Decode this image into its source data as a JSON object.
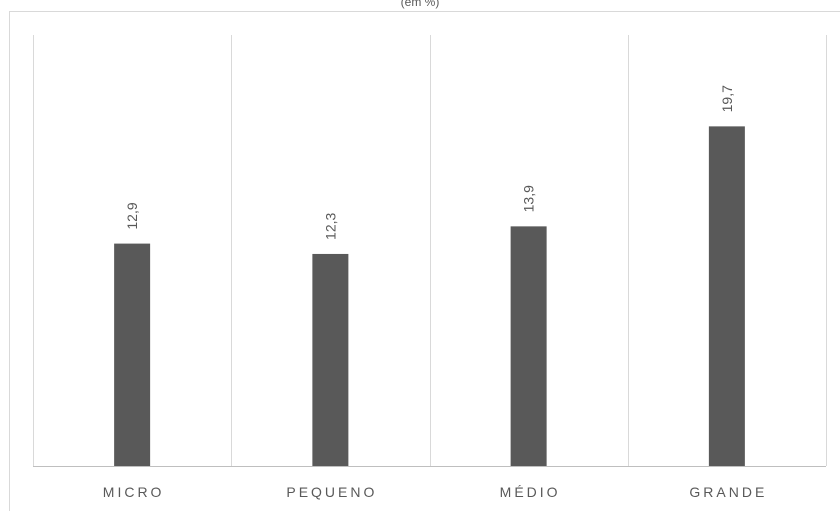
{
  "chart_data": {
    "type": "bar",
    "title": "(em %)",
    "categories": [
      "MICRO",
      "PEQUENO",
      "MÉDIO",
      "GRANDE"
    ],
    "values": [
      12.9,
      12.3,
      13.9,
      19.7
    ],
    "data_labels": [
      "12,9",
      "12,3",
      "13,9",
      "19,7"
    ],
    "ylim": [
      0,
      25
    ],
    "grid": "vertical",
    "bar_color": "#595959",
    "xlabel": "",
    "ylabel": ""
  }
}
